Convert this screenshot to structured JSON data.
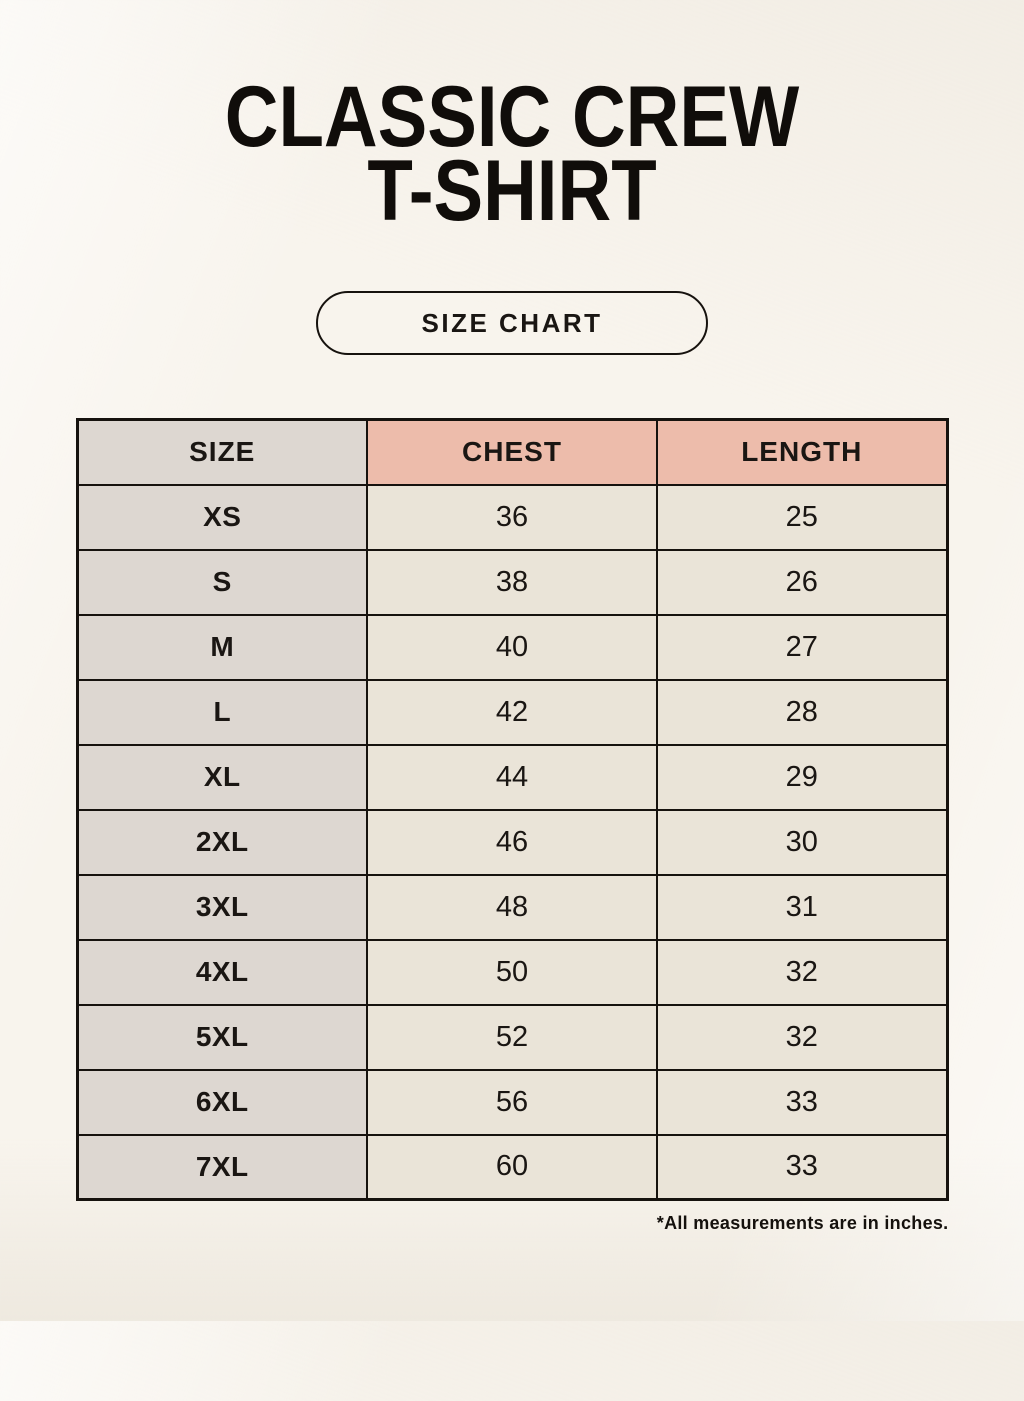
{
  "page": {
    "title_line1": "CLASSIC CREW",
    "title_line2": "T-SHIRT",
    "size_chart_button_label": "SIZE CHART",
    "footnote": "*All measurements are in inches."
  },
  "colors": {
    "background": "#f8f4ed",
    "header_accent": "#edbcab",
    "size_col_bg": "#ddd7d1",
    "cell_bg": "#eae4d8",
    "border": "#16120e",
    "text": "#1a1613"
  },
  "chart_data": {
    "type": "table",
    "title": "CLASSIC CREW T-SHIRT",
    "columns": [
      "SIZE",
      "CHEST",
      "LENGTH"
    ],
    "rows": [
      [
        "XS",
        36,
        25
      ],
      [
        "S",
        38,
        26
      ],
      [
        "M",
        40,
        27
      ],
      [
        "L",
        42,
        28
      ],
      [
        "XL",
        44,
        29
      ],
      [
        "2XL",
        46,
        30
      ],
      [
        "3XL",
        48,
        31
      ],
      [
        "4XL",
        50,
        32
      ],
      [
        "5XL",
        52,
        32
      ],
      [
        "6XL",
        56,
        33
      ],
      [
        "7XL",
        60,
        33
      ]
    ],
    "units": "inches",
    "footnote": "*All measurements are in inches."
  }
}
